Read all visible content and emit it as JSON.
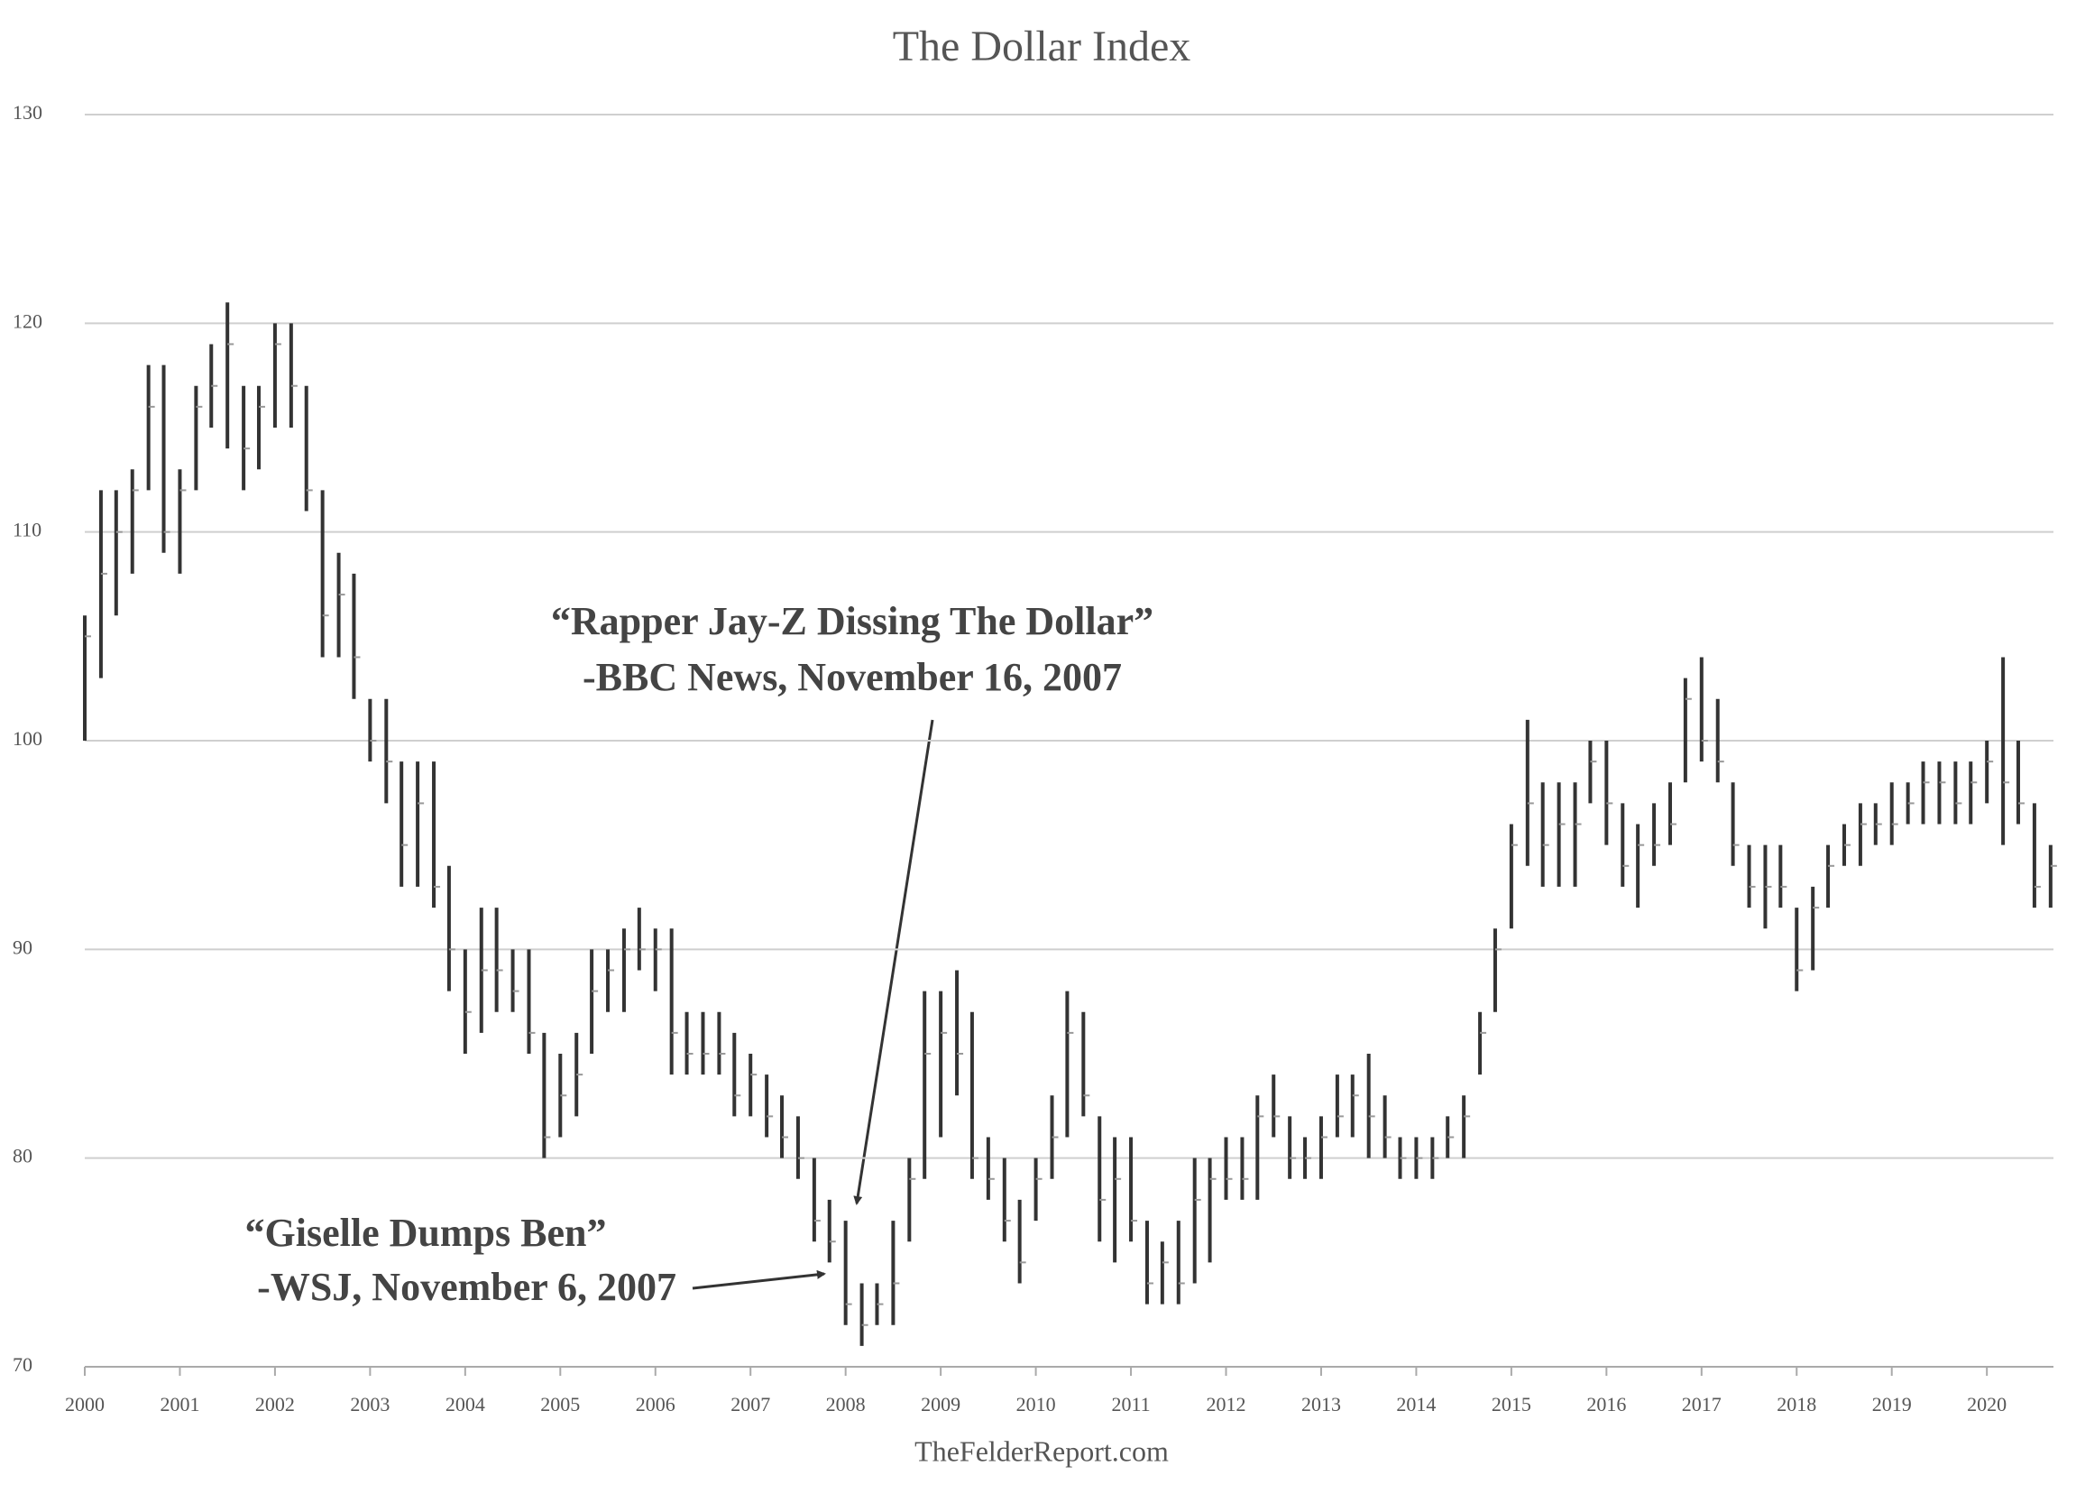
{
  "chart_data": {
    "type": "ohlc",
    "title": "The Dollar Index",
    "source": "TheFelderReport.com",
    "annotations": [
      [
        "“Rapper Jay-Z Dissing The Dollar”",
        "-BBC News, November 16, 2007"
      ],
      [
        "“Giselle Dumps Ben”",
        "-WSJ, November 6, 2007"
      ]
    ],
    "color": "#333333",
    "grid": true,
    "xlim": [
      2000,
      2020.7
    ],
    "xticks": [
      2000,
      2001,
      2002,
      2003,
      2004,
      2005,
      2006,
      2007,
      2008,
      2009,
      2010,
      2011,
      2012,
      2013,
      2014,
      2015,
      2016,
      2017,
      2018,
      2019,
      2020
    ],
    "ylim": [
      70,
      130
    ],
    "yticks": [
      70,
      80,
      90,
      100,
      110,
      120,
      130
    ],
    "x": [
      2000,
      2000.17,
      2000.33,
      2000.5,
      2000.67,
      2000.83,
      2001,
      2001.17,
      2001.33,
      2001.5,
      2001.67,
      2001.83,
      2002,
      2002.17,
      2002.33,
      2002.5,
      2002.67,
      2002.83,
      2003,
      2003.17,
      2003.33,
      2003.5,
      2003.67,
      2003.83,
      2004,
      2004.17,
      2004.33,
      2004.5,
      2004.67,
      2004.83,
      2005,
      2005.17,
      2005.33,
      2005.5,
      2005.67,
      2005.83,
      2006,
      2006.17,
      2006.33,
      2006.5,
      2006.67,
      2006.83,
      2007,
      2007.17,
      2007.33,
      2007.5,
      2007.67,
      2007.83,
      2008,
      2008.17,
      2008.33,
      2008.5,
      2008.67,
      2008.83,
      2009,
      2009.17,
      2009.33,
      2009.5,
      2009.67,
      2009.83,
      2010,
      2010.17,
      2010.33,
      2010.5,
      2010.67,
      2010.83,
      2011,
      2011.17,
      2011.33,
      2011.5,
      2011.67,
      2011.83,
      2012,
      2012.17,
      2012.33,
      2012.5,
      2012.67,
      2012.83,
      2013,
      2013.17,
      2013.33,
      2013.5,
      2013.67,
      2013.83,
      2014,
      2014.17,
      2014.33,
      2014.5,
      2014.67,
      2014.83,
      2015,
      2015.17,
      2015.33,
      2015.5,
      2015.67,
      2015.83,
      2016,
      2016.17,
      2016.33,
      2016.5,
      2016.67,
      2016.83,
      2017,
      2017.17,
      2017.33,
      2017.5,
      2017.67,
      2017.83,
      2018,
      2018.17,
      2018.33,
      2018.5,
      2018.67,
      2018.83,
      2019,
      2019.17,
      2019.33,
      2019.5,
      2019.67,
      2019.83,
      2020,
      2020.17,
      2020.33,
      2020.5,
      2020.67
    ],
    "high": [
      106,
      112,
      112,
      113,
      118,
      118,
      113,
      117,
      119,
      121,
      117,
      117,
      120,
      120,
      117,
      112,
      109,
      108,
      102,
      102,
      99,
      99,
      99,
      94,
      90,
      92,
      92,
      90,
      90,
      86,
      85,
      86,
      90,
      90,
      91,
      92,
      91,
      91,
      87,
      87,
      87,
      86,
      85,
      84,
      83,
      82,
      80,
      78,
      77,
      74,
      74,
      77,
      80,
      88,
      88,
      89,
      87,
      81,
      80,
      78,
      80,
      83,
      88,
      87,
      82,
      81,
      81,
      77,
      76,
      77,
      80,
      80,
      81,
      81,
      83,
      84,
      82,
      81,
      82,
      84,
      84,
      85,
      83,
      81,
      81,
      81,
      82,
      83,
      87,
      91,
      96,
      101,
      98,
      98,
      98,
      100,
      100,
      97,
      96,
      97,
      98,
      103,
      104,
      102,
      98,
      95,
      95,
      95,
      92,
      93,
      95,
      96,
      97,
      97,
      98,
      98,
      99,
      99,
      99,
      99,
      100,
      104,
      100,
      97,
      95
    ],
    "low": [
      100,
      103,
      106,
      108,
      112,
      109,
      108,
      112,
      115,
      114,
      112,
      113,
      115,
      115,
      111,
      104,
      104,
      102,
      99,
      97,
      93,
      93,
      92,
      88,
      85,
      86,
      87,
      87,
      85,
      80,
      81,
      82,
      85,
      87,
      87,
      89,
      88,
      84,
      84,
      84,
      84,
      82,
      82,
      81,
      80,
      79,
      76,
      75,
      72,
      71,
      72,
      72,
      76,
      79,
      81,
      83,
      79,
      78,
      76,
      74,
      77,
      79,
      81,
      82,
      76,
      75,
      76,
      73,
      73,
      73,
      74,
      75,
      78,
      78,
      78,
      81,
      79,
      79,
      79,
      81,
      81,
      80,
      80,
      79,
      79,
      79,
      80,
      80,
      84,
      87,
      91,
      94,
      93,
      93,
      93,
      97,
      95,
      93,
      92,
      94,
      95,
      98,
      99,
      98,
      94,
      92,
      91,
      92,
      88,
      89,
      92,
      94,
      94,
      95,
      95,
      96,
      96,
      96,
      96,
      96,
      97,
      95,
      96,
      92,
      92
    ],
    "close": [
      105,
      108,
      110,
      112,
      116,
      110,
      112,
      116,
      117,
      119,
      114,
      116,
      119,
      117,
      112,
      106,
      107,
      104,
      100,
      99,
      95,
      97,
      93,
      90,
      87,
      89,
      89,
      88,
      86,
      81,
      83,
      84,
      88,
      89,
      90,
      90,
      90,
      86,
      85,
      85,
      85,
      83,
      84,
      82,
      81,
      80,
      77,
      76,
      73,
      72,
      73,
      74,
      79,
      85,
      86,
      85,
      80,
      79,
      77,
      75,
      79,
      81,
      86,
      83,
      78,
      79,
      77,
      74,
      75,
      74,
      78,
      79,
      79,
      79,
      82,
      82,
      80,
      80,
      81,
      82,
      83,
      82,
      81,
      80,
      80,
      80,
      81,
      82,
      86,
      90,
      95,
      97,
      95,
      96,
      96,
      99,
      97,
      94,
      95,
      95,
      96,
      102,
      100,
      99,
      95,
      93,
      93,
      93,
      89,
      92,
      94,
      95,
      96,
      96,
      96,
      97,
      98,
      98,
      97,
      98,
      99,
      98,
      97,
      93,
      94
    ]
  }
}
